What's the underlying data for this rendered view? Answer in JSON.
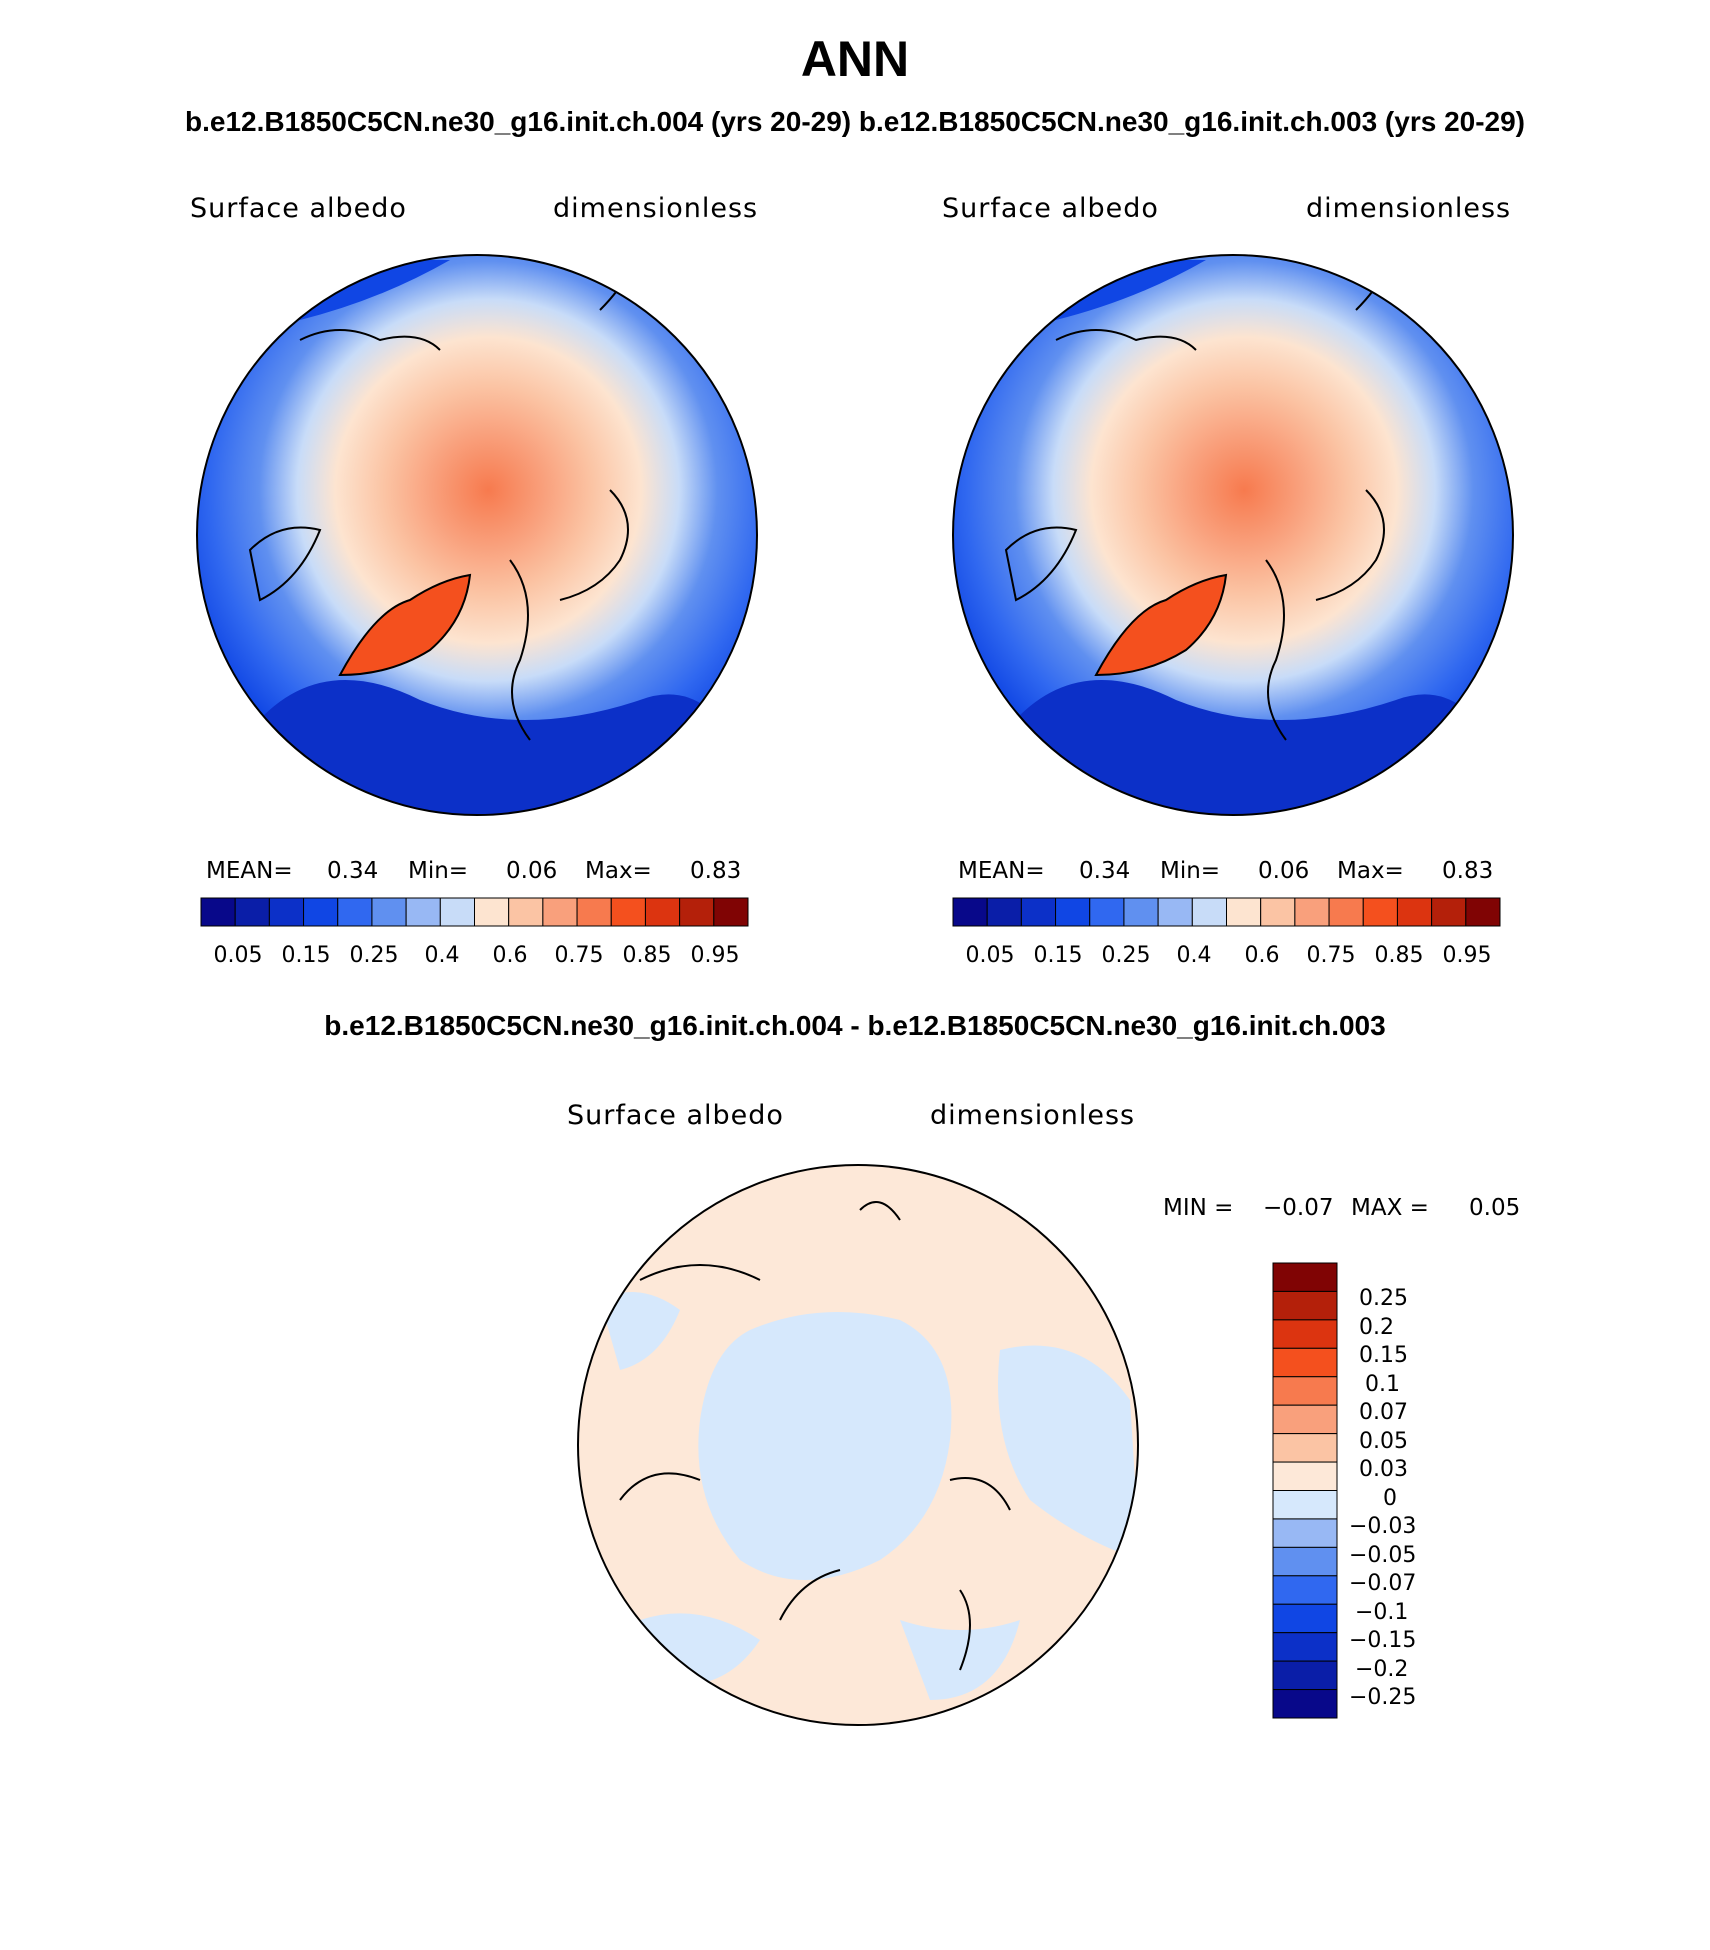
{
  "title": "ANN",
  "subtitle": "b.e12.B1850C5CN.ne30_g16.init.ch.004 (yrs 20-29) b.e12.B1850C5CN.ne30_g16.init.ch.003 (yrs 20-29)",
  "diff_title": "b.e12.B1850C5CN.ne30_g16.init.ch.004 - b.e12.B1850C5CN.ne30_g16.init.ch.003",
  "colors": {
    "abs_palette": [
      "#08088a",
      "#0a1ea8",
      "#0c30c8",
      "#1046e4",
      "#3068f0",
      "#6090f0",
      "#98b8f4",
      "#c8dcf8",
      "#fde4d0",
      "#fbc4a4",
      "#f9a07c",
      "#f77a4e",
      "#f4501e",
      "#dc3410",
      "#b4200a",
      "#800404"
    ],
    "diff_palette": [
      "#08088a",
      "#0a1ea8",
      "#0c30c8",
      "#1046e4",
      "#3068f0",
      "#6090f0",
      "#98b8f4",
      "#d6e8fc",
      "#fde8d8",
      "#fbc4a4",
      "#f9a07c",
      "#f77a4e",
      "#f4501e",
      "#dc3410",
      "#b4200a",
      "#800404"
    ]
  },
  "chart_data": [
    {
      "type": "heatmap",
      "projection": "north polar stereographic",
      "variable": "Surface albedo",
      "units": "dimensionless",
      "case": "b.e12.B1850C5CN.ne30_g16.init.ch.004 (yrs 20-29)",
      "stats": {
        "mean_label": "MEAN=",
        "mean": "0.34",
        "min_label": "Min=",
        "min": "0.06",
        "max_label": "Max=",
        "max": "0.83"
      },
      "levels": [
        0.05,
        0.1,
        0.15,
        0.2,
        0.25,
        0.3,
        0.4,
        0.5,
        0.6,
        0.7,
        0.75,
        0.8,
        0.85,
        0.9,
        0.95
      ],
      "tick_labels": [
        "0.05",
        "0.15",
        "0.25",
        "0.4",
        "0.6",
        "0.75",
        "0.85",
        "0.95"
      ]
    },
    {
      "type": "heatmap",
      "projection": "north polar stereographic",
      "variable": "Surface albedo",
      "units": "dimensionless",
      "case": "b.e12.B1850C5CN.ne30_g16.init.ch.003 (yrs 20-29)",
      "stats": {
        "mean_label": "MEAN=",
        "mean": "0.34",
        "min_label": "Min=",
        "min": "0.06",
        "max_label": "Max=",
        "max": "0.83"
      },
      "levels": [
        0.05,
        0.1,
        0.15,
        0.2,
        0.25,
        0.3,
        0.4,
        0.5,
        0.6,
        0.7,
        0.75,
        0.8,
        0.85,
        0.9,
        0.95
      ],
      "tick_labels": [
        "0.05",
        "0.15",
        "0.25",
        "0.4",
        "0.6",
        "0.75",
        "0.85",
        "0.95"
      ]
    },
    {
      "type": "heatmap",
      "projection": "north polar stereographic",
      "variable": "Surface albedo",
      "units": "dimensionless",
      "case": "b.e12.B1850C5CN.ne30_g16.init.ch.004 - b.e12.B1850C5CN.ne30_g16.init.ch.003",
      "stats": {
        "min_label": "MIN =",
        "min": "−0.07",
        "max_label": "MAX =",
        "max": "0.05"
      },
      "levels": [
        -0.25,
        -0.2,
        -0.15,
        -0.1,
        -0.07,
        -0.05,
        -0.03,
        0,
        0.03,
        0.05,
        0.07,
        0.1,
        0.15,
        0.2,
        0.25
      ],
      "tick_labels": [
        "0.25",
        "0.2",
        "0.15",
        "0.1",
        "0.07",
        "0.05",
        "0.03",
        "0",
        "−0.03",
        "−0.05",
        "−0.07",
        "−0.1",
        "−0.15",
        "−0.2",
        "−0.25"
      ]
    }
  ]
}
